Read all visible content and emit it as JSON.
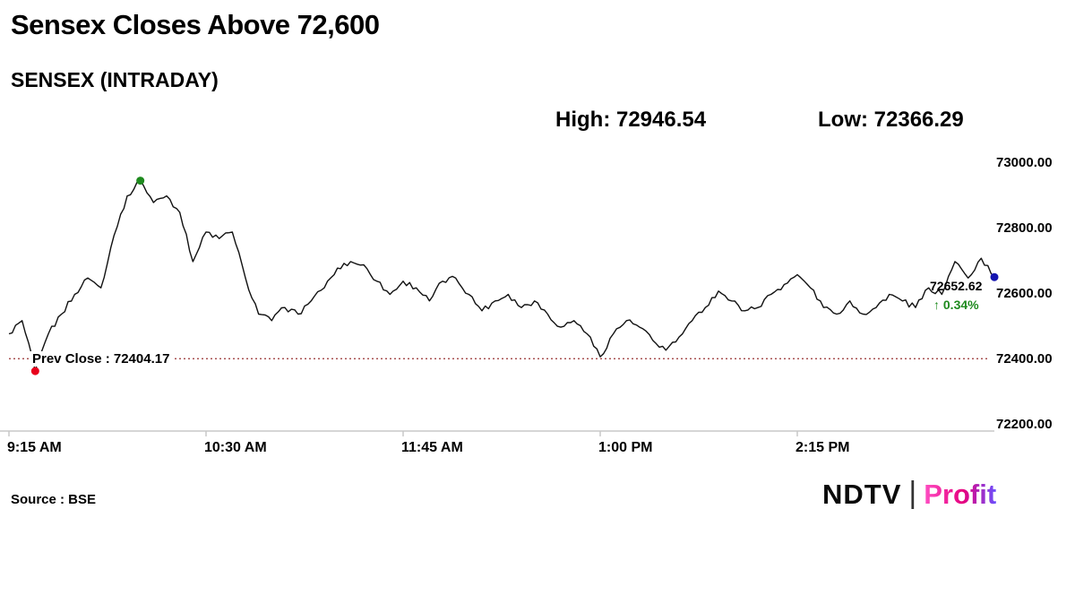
{
  "header": {
    "title": "Sensex Closes Above 72,600",
    "subtitle": "SENSEX (INTRADAY)",
    "high_label": "High: 72946.54",
    "low_label": "Low: 72366.29"
  },
  "footer": {
    "source": "Source : BSE",
    "logo": {
      "ndtv": "NDTV",
      "separator": "|",
      "profit": "Profit"
    }
  },
  "chart_data": {
    "type": "line",
    "title": "SENSEX (INTRADAY)",
    "x_unit": "minutes since 9:15 AM",
    "interval_minutes": 5,
    "x": [
      0,
      5,
      10,
      15,
      20,
      25,
      30,
      35,
      40,
      45,
      50,
      55,
      60,
      65,
      70,
      75,
      80,
      85,
      90,
      95,
      100,
      105,
      110,
      115,
      120,
      125,
      130,
      135,
      140,
      145,
      150,
      155,
      160,
      165,
      170,
      175,
      180,
      185,
      190,
      195,
      200,
      205,
      210,
      215,
      220,
      225,
      230,
      235,
      240,
      245,
      250,
      255,
      260,
      265,
      270,
      275,
      280,
      285,
      290,
      295,
      300,
      305,
      310,
      315,
      320,
      325,
      330,
      335,
      340,
      345,
      350,
      355,
      360,
      365,
      370,
      375
    ],
    "values": [
      72480,
      72520,
      72366.29,
      72480,
      72540,
      72600,
      72650,
      72620,
      72780,
      72900,
      72946.54,
      72880,
      72900,
      72850,
      72700,
      72790,
      72770,
      72790,
      72650,
      72540,
      72520,
      72560,
      72540,
      72580,
      72620,
      72680,
      72700,
      72690,
      72640,
      72600,
      72640,
      72620,
      72580,
      72640,
      72650,
      72600,
      72550,
      72580,
      72600,
      72560,
      72580,
      72540,
      72500,
      72520,
      72480,
      72410,
      72480,
      72520,
      72500,
      72460,
      72430,
      72470,
      72520,
      72560,
      72610,
      72580,
      72550,
      72560,
      72600,
      72630,
      72660,
      72620,
      72560,
      72540,
      72580,
      72540,
      72560,
      72600,
      72580,
      72560,
      72620,
      72600,
      72700,
      72650,
      72710,
      72652.62
    ],
    "high": 72946.54,
    "low": 72366.29,
    "prev_close": 72404.17,
    "prev_close_label": "Prev Close : 72404.17",
    "last": 72652.62,
    "last_label": "72652.62",
    "change_pct_label": "↑ 0.34%",
    "yticks": [
      "73000.00",
      "72800.00",
      "72600.00",
      "72400.00",
      "72200.00"
    ],
    "ytick_values": [
      73000,
      72800,
      72600,
      72400,
      72200
    ],
    "xticks": [
      "9:15 AM",
      "10:30 AM",
      "11:45 AM",
      "1:00 PM",
      "2:15 PM"
    ],
    "xtick_minutes": [
      0,
      75,
      150,
      225,
      300
    ],
    "ylim": [
      72200,
      73030
    ],
    "grid": false,
    "legend": "none",
    "marker_indices": {
      "low": 2,
      "high": 10,
      "close": 75
    },
    "colors": {
      "line": "#111111",
      "prev_close_line": "#993333",
      "axis": "#c9c9c9",
      "high_dot": "#1e8a1e",
      "low_dot": "#e8001c",
      "close_dot": "#1515b0",
      "change_pct": "#1e8a1e"
    }
  }
}
